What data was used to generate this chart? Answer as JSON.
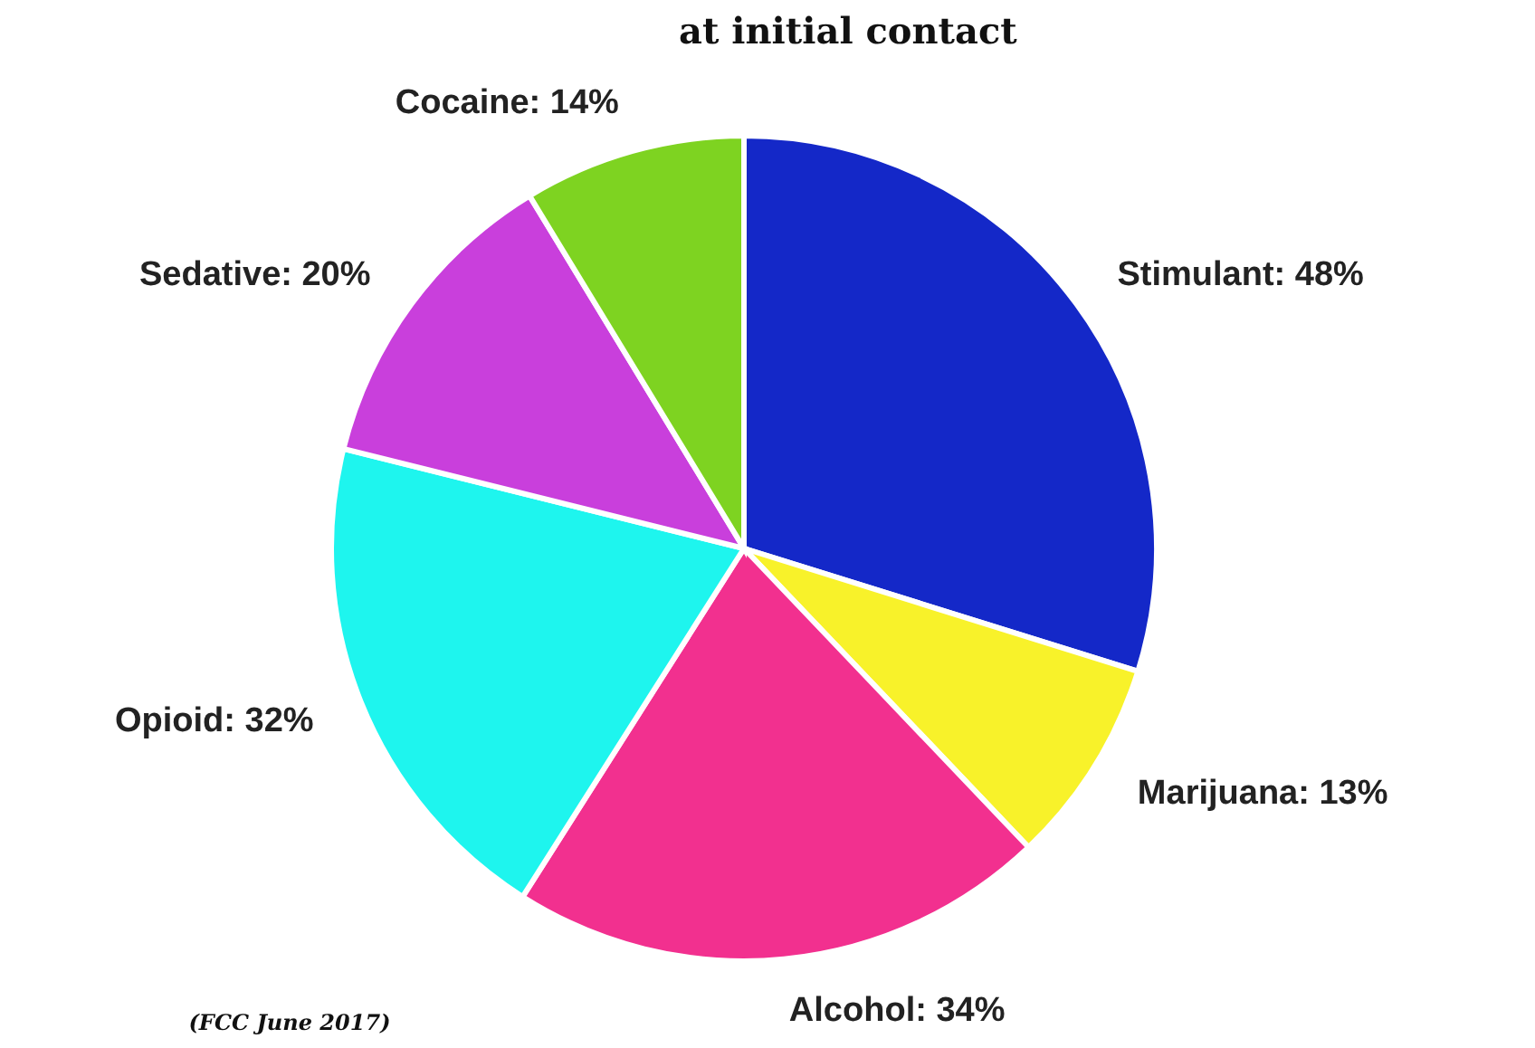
{
  "chart_data": {
    "type": "pie",
    "title": "at initial contact",
    "categories": [
      "Stimulant",
      "Marijuana",
      "Alcohol",
      "Opioid",
      "Sedative",
      "Cocaine"
    ],
    "values": [
      48,
      13,
      34,
      32,
      20,
      14
    ],
    "value_labels": [
      "48%",
      "13%",
      "34%",
      "32%",
      "20%",
      "14%"
    ],
    "colors": [
      "#1428c8",
      "#f8f22a",
      "#f2308f",
      "#1ef5ee",
      "#c93fdc",
      "#7ed321"
    ],
    "annotations": [
      "(FCC June 2017)"
    ]
  }
}
